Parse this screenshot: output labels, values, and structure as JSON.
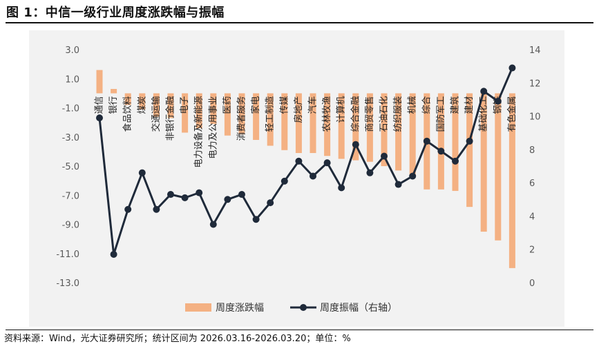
{
  "figure_title": "图 1：中信一级行业周度涨跌幅与振幅",
  "source_note": "资料来源：Wind，光大证券研究所；统计区间为 2026.03.16-2026.03.20；单位：%",
  "colors": {
    "bar": "#F4B183",
    "line": "#1F2A3A",
    "axis_text": "#595959"
  },
  "chart_data": {
    "type": "bar+line",
    "categories": [
      "通信",
      "银行",
      "食品饮料",
      "煤炭",
      "交通运输",
      "非银行金融",
      "电子",
      "电力设备及新能源",
      "电力及公用事业",
      "医药",
      "消费者服务",
      "家电",
      "轻工制造",
      "传媒",
      "房地产",
      "汽车",
      "农林牧渔",
      "计算机",
      "综合金融",
      "商贸零售",
      "石油石化",
      "纺织服装",
      "机械",
      "综合",
      "国防军工",
      "建筑",
      "建材",
      "基础化工",
      "钢铁",
      "有色金属"
    ],
    "series": [
      {
        "name": "周度涨跌幅",
        "type": "bar",
        "axis": "left",
        "values": [
          1.6,
          0.3,
          -0.8,
          -1.1,
          -1.6,
          -1.7,
          -2.7,
          -2.4,
          -2.1,
          -2.9,
          -2.8,
          -3.2,
          -3.6,
          -3.9,
          -4.1,
          -4.1,
          -4.3,
          -4.5,
          -4.6,
          -4.7,
          -5.0,
          -5.3,
          -5.6,
          -6.6,
          -6.6,
          -6.7,
          -7.8,
          -9.5,
          -10.1,
          -12.0
        ]
      },
      {
        "name": "周度振幅（右轴）",
        "type": "line",
        "axis": "right",
        "values": [
          9.9,
          1.7,
          4.4,
          6.6,
          4.4,
          5.3,
          5.1,
          5.4,
          3.5,
          5.0,
          5.3,
          3.8,
          4.8,
          6.1,
          7.3,
          6.4,
          7.2,
          5.7,
          8.3,
          6.6,
          7.6,
          5.9,
          6.4,
          8.5,
          7.9,
          7.3,
          8.5,
          11.5,
          10.9,
          12.9
        ]
      }
    ],
    "y_left": {
      "min": -13,
      "max": 3,
      "ticks": [
        "3.0",
        "1.0",
        "-1.0",
        "-3.0",
        "-5.0",
        "-7.0",
        "-9.0",
        "-11.0",
        "-13.0"
      ]
    },
    "y_right": {
      "min": 0,
      "max": 14,
      "ticks": [
        "14",
        "12",
        "10",
        "8",
        "6",
        "4",
        "2",
        "0"
      ]
    },
    "legend": [
      "周度涨跌幅",
      "周度振幅（右轴）"
    ],
    "legend_position": "bottom"
  }
}
